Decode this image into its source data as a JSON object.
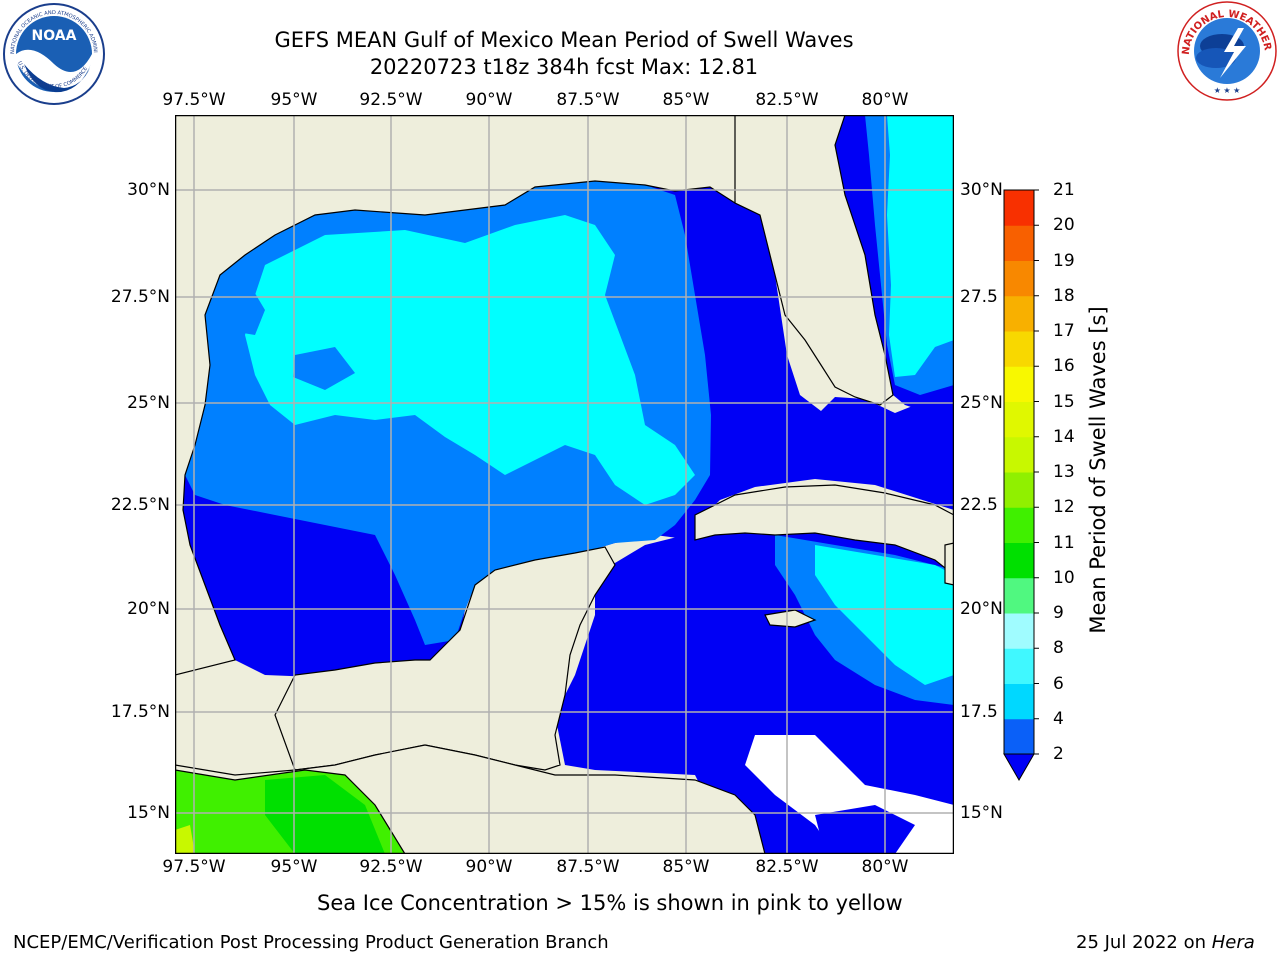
{
  "header": {
    "title_line1": "GEFS MEAN Gulf of Mexico Mean Period of Swell Waves",
    "title_line2": "20220723 t18z 384h fcst   Max: 12.81"
  },
  "logos": {
    "noaa_text": "NOAA",
    "noaa_ring": "NATIONAL OCEANIC AND ATMOSPHERIC ADMINISTRATION",
    "noaa_ring_bottom": "U.S. DEPARTMENT OF COMMERCE",
    "nws_ring": "NATIONAL WEATHER SERVICE"
  },
  "map": {
    "lon_ticks": [
      "97.5°W",
      "95°W",
      "92.5°W",
      "90°W",
      "87.5°W",
      "85°W",
      "82.5°W",
      "80°W"
    ],
    "lat_ticks_left": [
      "30°N",
      "27.5°N",
      "25°N",
      "22.5°N",
      "20°N",
      "17.5°N",
      "15°N"
    ],
    "lat_ticks_right": [
      "30°N",
      "27.5",
      "25°N",
      "22.5",
      "20°N",
      "17.5",
      "15°N"
    ],
    "colors": {
      "land": "#eeeedc",
      "ocean_2_4": "#0000f5",
      "ocean_4_6": "#0080ff",
      "ocean_6_8": "#00ffff",
      "grid": "#b0b0b0"
    }
  },
  "colorbar": {
    "label": "Mean Period of Swell Waves [s]",
    "ticks": [
      "2",
      "4",
      "6",
      "8",
      "9",
      "10",
      "11",
      "12",
      "13",
      "14",
      "15",
      "16",
      "17",
      "18",
      "19",
      "20",
      "21"
    ],
    "colors": [
      "#0a60f8",
      "#00d8ff",
      "#40f8ff",
      "#a0fcff",
      "#50f880",
      "#00e000",
      "#40f000",
      "#90f000",
      "#c8f800",
      "#e0f800",
      "#f8f800",
      "#f8d800",
      "#f8b000",
      "#f88800",
      "#f86000",
      "#f83000"
    ]
  },
  "footer": {
    "note": "Sea Ice Concentration > 15% is shown in pink to yellow",
    "credit": "NCEP/EMC/Verification Post Processing Product Generation Branch",
    "date": "25 Jul 2022 on ",
    "machine": "Hera"
  }
}
